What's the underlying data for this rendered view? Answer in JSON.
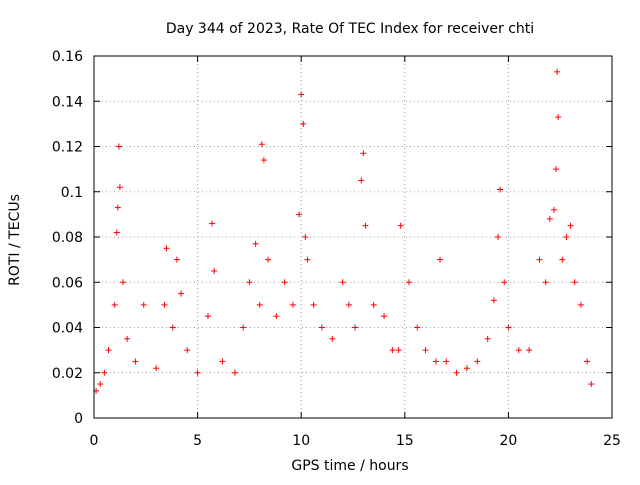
{
  "chart_data": {
    "type": "scatter",
    "title": "Day 344 of 2023, Rate Of TEC Index for receiver chti",
    "xlabel": "GPS time / hours",
    "ylabel": "ROTI / TECUs",
    "xlim": [
      0,
      25
    ],
    "ylim": [
      0,
      0.16
    ],
    "xticks": [
      0,
      5,
      10,
      15,
      20,
      25
    ],
    "xtick_labels": [
      "0",
      "5",
      "10",
      "15",
      "20",
      "25"
    ],
    "yticks": [
      0,
      0.02,
      0.04,
      0.06,
      0.08,
      0.1,
      0.12,
      0.14,
      0.16
    ],
    "ytick_labels": [
      "0",
      "0.02",
      "0.04",
      "0.06",
      "0.08",
      "0.1",
      "0.12",
      "0.14",
      "0.16"
    ],
    "grid": true,
    "marker": "+",
    "color": "#ff0000",
    "series": [
      {
        "name": "ROTI",
        "x": [
          0.1,
          0.3,
          0.5,
          0.7,
          1.0,
          1.1,
          1.15,
          1.2,
          1.25,
          1.4,
          1.6,
          2.0,
          2.4,
          3.0,
          3.4,
          3.5,
          3.8,
          4.0,
          4.2,
          4.5,
          5.0,
          5.5,
          5.7,
          5.8,
          6.2,
          6.8,
          7.2,
          7.5,
          7.8,
          8.0,
          8.1,
          8.2,
          8.4,
          8.8,
          9.2,
          9.6,
          9.9,
          10.0,
          10.1,
          10.2,
          10.3,
          10.6,
          11.0,
          11.5,
          12.0,
          12.3,
          12.6,
          12.9,
          13.0,
          13.1,
          13.5,
          14.0,
          14.4,
          14.7,
          14.8,
          15.2,
          15.6,
          16.0,
          16.5,
          16.7,
          17.0,
          17.5,
          18.0,
          18.5,
          19.0,
          19.3,
          19.5,
          19.6,
          19.8,
          20.0,
          20.5,
          21.0,
          21.5,
          21.8,
          22.0,
          22.2,
          22.3,
          22.35,
          22.4,
          22.6,
          22.8,
          23.0,
          23.2,
          23.5,
          23.8,
          24.0
        ],
        "y": [
          0.012,
          0.015,
          0.02,
          0.03,
          0.05,
          0.082,
          0.093,
          0.12,
          0.102,
          0.06,
          0.035,
          0.025,
          0.05,
          0.022,
          0.05,
          0.075,
          0.04,
          0.07,
          0.055,
          0.03,
          0.02,
          0.045,
          0.086,
          0.065,
          0.025,
          0.02,
          0.04,
          0.06,
          0.077,
          0.05,
          0.121,
          0.114,
          0.07,
          0.045,
          0.06,
          0.05,
          0.09,
          0.143,
          0.13,
          0.08,
          0.07,
          0.05,
          0.04,
          0.035,
          0.06,
          0.05,
          0.04,
          0.105,
          0.117,
          0.085,
          0.05,
          0.045,
          0.03,
          0.03,
          0.085,
          0.06,
          0.04,
          0.03,
          0.025,
          0.07,
          0.025,
          0.02,
          0.022,
          0.025,
          0.035,
          0.052,
          0.08,
          0.101,
          0.06,
          0.04,
          0.03,
          0.03,
          0.07,
          0.06,
          0.088,
          0.092,
          0.11,
          0.153,
          0.133,
          0.07,
          0.08,
          0.085,
          0.06,
          0.05,
          0.025,
          0.015
        ]
      }
    ]
  }
}
